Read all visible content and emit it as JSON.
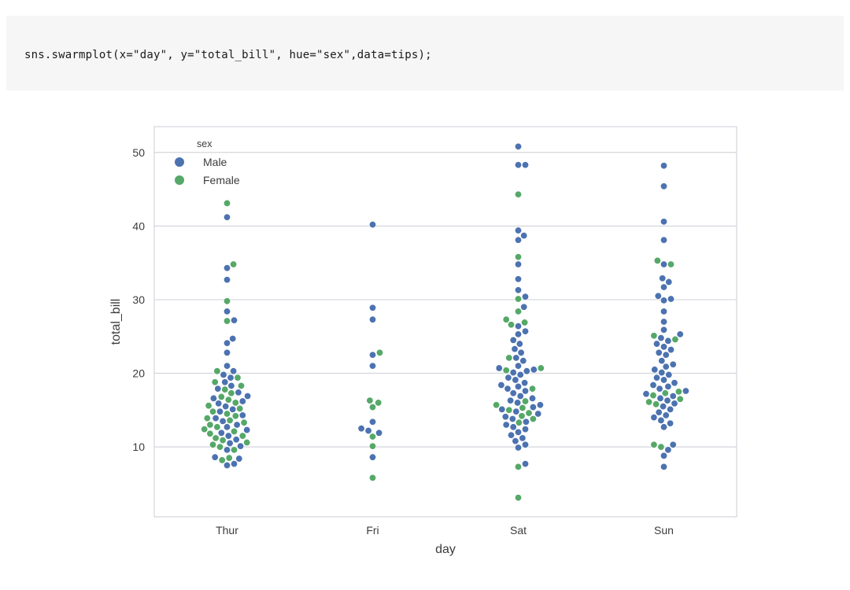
{
  "code": {
    "text": "sns.swarmplot(x=\"day\", y=\"total_bill\", hue=\"sex\",data=tips);"
  },
  "chart_data": {
    "type": "scatter",
    "subtype": "swarm",
    "title": "",
    "xlabel": "day",
    "ylabel": "total_bill",
    "categories": [
      "Thur",
      "Fri",
      "Sat",
      "Sun"
    ],
    "ylim": [
      0.5,
      53.5
    ],
    "yticks": [
      10,
      20,
      30,
      40,
      50
    ],
    "grid": true,
    "legend": {
      "title": "sex",
      "position": "top-left"
    },
    "colors": {
      "Male": "#4c72b0",
      "Female": "#55a868"
    },
    "series": [
      {
        "name": "Male",
        "values": {
          "Thur": [
            41.2,
            34.3,
            32.7,
            28.4,
            27.2,
            24.7,
            24.1,
            22.8,
            21.0,
            20.3,
            19.8,
            19.4,
            18.8,
            18.3,
            17.9,
            17.4,
            16.9,
            16.6,
            16.2,
            15.9,
            15.5,
            15.1,
            14.8,
            14.3,
            13.9,
            13.5,
            13.0,
            12.7,
            12.3,
            11.9,
            11.5,
            11.0,
            10.5,
            10.1,
            9.6,
            8.6,
            8.4,
            7.7,
            7.5
          ],
          "Fri": [
            40.2,
            28.9,
            27.3,
            22.5,
            21.0,
            13.4,
            12.5,
            12.2,
            11.9,
            8.6
          ],
          "Sat": [
            50.8,
            48.3,
            48.3,
            39.4,
            38.7,
            38.1,
            34.8,
            32.8,
            31.3,
            30.4,
            29.0,
            26.4,
            25.7,
            25.3,
            24.5,
            24.0,
            23.3,
            22.8,
            22.1,
            21.7,
            21.0,
            20.7,
            20.5,
            20.3,
            20.1,
            19.8,
            19.4,
            19.1,
            18.7,
            18.4,
            18.2,
            17.9,
            17.6,
            17.3,
            16.9,
            16.6,
            16.3,
            16.0,
            15.7,
            15.4,
            15.1,
            14.8,
            14.5,
            14.1,
            13.8,
            13.4,
            13.0,
            12.7,
            12.4,
            12.0,
            11.6,
            11.2,
            10.8,
            10.3,
            9.9,
            7.7
          ],
          "Sun": [
            48.2,
            45.4,
            40.6,
            38.1,
            34.8,
            32.9,
            32.4,
            31.7,
            30.5,
            30.1,
            29.9,
            28.4,
            27.0,
            25.9,
            25.3,
            24.8,
            24.4,
            24.0,
            23.6,
            23.2,
            22.8,
            22.5,
            21.7,
            21.2,
            20.9,
            20.5,
            20.1,
            19.8,
            19.4,
            19.1,
            18.7,
            18.4,
            18.2,
            17.9,
            17.6,
            17.2,
            16.9,
            16.6,
            16.3,
            15.9,
            15.5,
            15.1,
            14.7,
            14.3,
            14.0,
            13.6,
            13.2,
            12.7,
            10.3,
            9.6,
            8.8,
            7.3
          ]
        }
      },
      {
        "name": "Female",
        "values": {
          "Thur": [
            43.1,
            34.8,
            29.8,
            27.1,
            20.3,
            19.4,
            18.8,
            18.3,
            17.8,
            17.3,
            16.8,
            16.4,
            16.0,
            15.6,
            15.2,
            14.8,
            14.5,
            14.2,
            13.9,
            13.6,
            13.3,
            13.0,
            12.7,
            12.4,
            12.1,
            11.8,
            11.5,
            11.2,
            10.9,
            10.6,
            10.3,
            10.0,
            9.6,
            8.5,
            8.2
          ],
          "Fri": [
            22.8,
            16.3,
            16.0,
            15.4,
            11.4,
            10.1,
            5.8
          ],
          "Sat": [
            44.3,
            35.8,
            30.1,
            28.4,
            27.3,
            26.9,
            26.6,
            22.1,
            20.7,
            20.4,
            17.9,
            16.2,
            15.7,
            15.3,
            15.0,
            14.6,
            14.2,
            13.8,
            13.3,
            7.3,
            3.1
          ],
          "Sun": [
            35.3,
            34.8,
            25.1,
            24.6,
            17.5,
            17.3,
            17.0,
            16.5,
            16.1,
            15.8,
            10.3,
            10.0
          ]
        }
      }
    ]
  }
}
